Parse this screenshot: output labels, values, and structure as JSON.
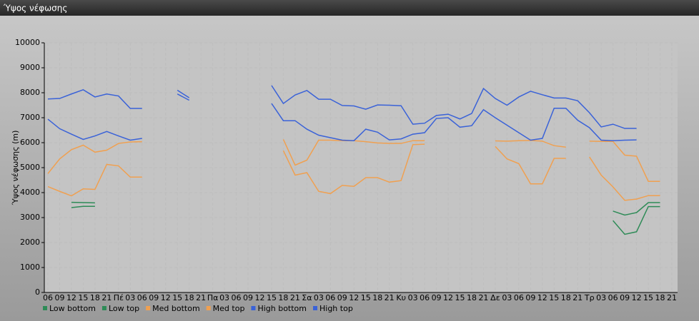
{
  "chart_data": {
    "type": "line",
    "title": "Ύψος νέφωσης",
    "y_label": "Ύψος νέφωσης (m)",
    "categories": [
      "06",
      "09",
      "12",
      "15",
      "18",
      "21",
      "Πέ",
      "03",
      "06",
      "09",
      "12",
      "15",
      "18",
      "21",
      "Πα",
      "03",
      "06",
      "09",
      "12",
      "15",
      "18",
      "21",
      "Σα",
      "03",
      "06",
      "09",
      "12",
      "15",
      "18",
      "21",
      "Κυ",
      "03",
      "06",
      "09",
      "12",
      "15",
      "18",
      "21",
      "Δε",
      "03",
      "06",
      "09",
      "12",
      "15",
      "18",
      "21",
      "Τρ",
      "03",
      "06",
      "09",
      "12",
      "15",
      "18",
      "21"
    ],
    "ylim": [
      0,
      10000
    ],
    "yticks": [
      0,
      1000,
      2000,
      3000,
      4000,
      5000,
      6000,
      7000,
      8000,
      9000,
      10000
    ],
    "grid": true,
    "legend": "bottom",
    "series": [
      {
        "name": "Low bottom",
        "color": "#2e8b57",
        "values": [
          null,
          null,
          3400,
          3450,
          3450,
          null,
          null,
          null,
          null,
          null,
          null,
          null,
          null,
          null,
          null,
          null,
          null,
          null,
          null,
          null,
          null,
          null,
          null,
          null,
          null,
          null,
          null,
          null,
          null,
          null,
          null,
          null,
          null,
          null,
          null,
          null,
          null,
          null,
          null,
          null,
          null,
          null,
          null,
          null,
          null,
          null,
          null,
          null,
          2880,
          2330,
          2430,
          3440,
          3440,
          null
        ]
      },
      {
        "name": "Low top",
        "color": "#2e8b57",
        "values": [
          null,
          null,
          3610,
          3600,
          3590,
          null,
          null,
          null,
          null,
          null,
          null,
          null,
          null,
          null,
          null,
          null,
          null,
          null,
          null,
          null,
          null,
          null,
          null,
          null,
          null,
          null,
          null,
          null,
          null,
          null,
          null,
          null,
          null,
          null,
          null,
          null,
          null,
          null,
          null,
          null,
          null,
          null,
          null,
          null,
          null,
          null,
          null,
          null,
          3260,
          3100,
          3200,
          3600,
          3600,
          null
        ]
      },
      {
        "name": "Med bottom",
        "color": "#f0a050",
        "values": [
          4240,
          4050,
          3870,
          4150,
          4130,
          5130,
          5070,
          4620,
          4620,
          null,
          null,
          null,
          null,
          null,
          null,
          null,
          null,
          null,
          null,
          null,
          5680,
          4700,
          4800,
          4050,
          3960,
          4290,
          4250,
          4600,
          4600,
          4420,
          4480,
          5920,
          5940,
          null,
          null,
          null,
          null,
          null,
          5850,
          5350,
          5160,
          4350,
          4350,
          5370,
          5370,
          null,
          5430,
          4700,
          4230,
          3690,
          3740,
          3880,
          3880,
          null
        ]
      },
      {
        "name": "Med top",
        "color": "#f0a050",
        "values": [
          4760,
          5350,
          5720,
          5900,
          5620,
          5700,
          5970,
          6030,
          6040,
          null,
          null,
          null,
          null,
          null,
          null,
          null,
          null,
          null,
          null,
          null,
          6130,
          5100,
          5300,
          6100,
          6100,
          6080,
          6080,
          6040,
          5990,
          5970,
          5970,
          6080,
          6080,
          null,
          null,
          null,
          null,
          null,
          6070,
          6060,
          6080,
          6090,
          6060,
          5880,
          5820,
          null,
          6060,
          6050,
          6050,
          5500,
          5460,
          4450,
          4450,
          null
        ]
      },
      {
        "name": "High bottom",
        "color": "#3a62d8",
        "values": [
          6940,
          6560,
          6340,
          6130,
          6270,
          6450,
          6270,
          6100,
          6170,
          null,
          null,
          7950,
          7700,
          null,
          null,
          null,
          null,
          null,
          null,
          7570,
          6880,
          6880,
          6540,
          6300,
          6200,
          6100,
          6080,
          6540,
          6420,
          6110,
          6150,
          6340,
          6400,
          6970,
          7000,
          6620,
          6680,
          7320,
          7000,
          6700,
          6400,
          6100,
          6170,
          7380,
          7380,
          6900,
          6600,
          6100,
          6080,
          6100,
          6110,
          null,
          null,
          null
        ]
      },
      {
        "name": "High top",
        "color": "#3a62d8",
        "values": [
          7750,
          7770,
          7950,
          8120,
          7830,
          7950,
          7870,
          7370,
          7370,
          null,
          null,
          8100,
          7800,
          null,
          null,
          null,
          null,
          null,
          null,
          8290,
          7570,
          7910,
          8090,
          7740,
          7740,
          7490,
          7470,
          7340,
          7510,
          7500,
          7480,
          6740,
          6780,
          7090,
          7140,
          6950,
          7170,
          8170,
          7770,
          7500,
          7830,
          8060,
          7920,
          7790,
          7790,
          7680,
          7200,
          6630,
          6740,
          6570,
          6570,
          null,
          null,
          null
        ]
      }
    ]
  }
}
